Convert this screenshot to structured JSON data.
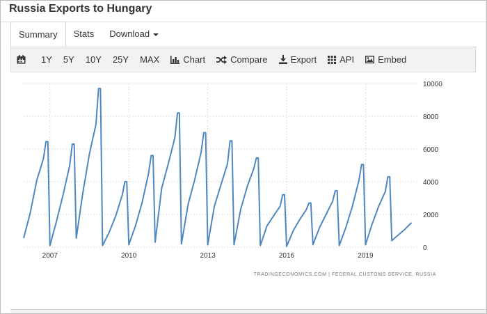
{
  "page": {
    "title": "Russia Exports to Hungary"
  },
  "tabs": [
    {
      "label": "Summary",
      "active": true
    },
    {
      "label": "Stats",
      "active": false
    },
    {
      "label": "Download",
      "active": false,
      "dropdown": true
    }
  ],
  "toolbar": {
    "calendar_icon": "calendar-icon",
    "ranges": [
      "1Y",
      "5Y",
      "10Y",
      "25Y",
      "MAX"
    ],
    "actions": [
      {
        "label": "Chart",
        "icon": "bar-chart-icon"
      },
      {
        "label": "Compare",
        "icon": "shuffle-icon"
      },
      {
        "label": "Export",
        "icon": "download-icon"
      },
      {
        "label": "API",
        "icon": "grid-icon"
      },
      {
        "label": "Embed",
        "icon": "image-icon"
      }
    ]
  },
  "chart_data": {
    "type": "line",
    "title": "",
    "xlabel": "",
    "ylabel": "",
    "y_axis_position": "right",
    "ylim": [
      0,
      10000
    ],
    "y_ticks": [
      0,
      2000,
      4000,
      6000,
      8000,
      10000
    ],
    "x_ticks": [
      "2007",
      "2010",
      "2013",
      "2016",
      "2019"
    ],
    "xlim": [
      2006.0,
      2021.0
    ],
    "grid": true,
    "line_color": "#4f87bf",
    "source": "TRADINGECONOMICS.COM  |  FEDERAL CUSTOMS SERVICE, RUSSIA",
    "series": [
      {
        "x": [
          2006.0,
          2006.25,
          2006.5,
          2006.75,
          2006.85,
          2006.92,
          2007.0,
          2007.25,
          2007.5,
          2007.75,
          2007.85,
          2007.92,
          2008.0,
          2008.25,
          2008.5,
          2008.75,
          2008.85,
          2008.92,
          2009.0,
          2009.25,
          2009.5,
          2009.75,
          2009.85,
          2009.92,
          2010.0,
          2010.25,
          2010.5,
          2010.75,
          2010.85,
          2010.92,
          2011.0,
          2011.25,
          2011.5,
          2011.75,
          2011.85,
          2011.92,
          2012.0,
          2012.25,
          2012.5,
          2012.75,
          2012.85,
          2012.92,
          2013.0,
          2013.25,
          2013.5,
          2013.75,
          2013.85,
          2013.92,
          2014.0,
          2014.25,
          2014.5,
          2014.75,
          2014.85,
          2014.92,
          2015.0,
          2015.25,
          2015.5,
          2015.75,
          2015.85,
          2015.92,
          2016.0,
          2016.25,
          2016.5,
          2016.75,
          2016.85,
          2016.92,
          2017.0,
          2017.25,
          2017.5,
          2017.75,
          2017.85,
          2017.92,
          2018.0,
          2018.25,
          2018.5,
          2018.75,
          2018.85,
          2018.92,
          2019.0,
          2019.25,
          2019.5,
          2019.75,
          2019.85,
          2019.92,
          2020.0,
          2020.25,
          2020.5,
          2020.75
        ],
        "values": [
          550,
          2100,
          4100,
          5400,
          6450,
          6450,
          100,
          1600,
          3200,
          5000,
          6300,
          6300,
          550,
          3300,
          5700,
          7500,
          9700,
          9700,
          100,
          900,
          1900,
          3200,
          4000,
          4000,
          150,
          1300,
          2700,
          4500,
          5600,
          5600,
          300,
          3600,
          5100,
          6700,
          8200,
          8200,
          200,
          2600,
          4100,
          5800,
          7000,
          7000,
          150,
          2500,
          3800,
          5100,
          6500,
          6500,
          150,
          2300,
          3700,
          4800,
          5450,
          5450,
          100,
          1300,
          1900,
          2500,
          3200,
          3200,
          50,
          1000,
          1700,
          2300,
          2700,
          2700,
          150,
          1200,
          2000,
          2800,
          3450,
          3450,
          100,
          1200,
          2500,
          4100,
          5050,
          5050,
          150,
          1400,
          2500,
          3400,
          4300,
          4300,
          400,
          750,
          1100,
          1500
        ]
      }
    ]
  }
}
